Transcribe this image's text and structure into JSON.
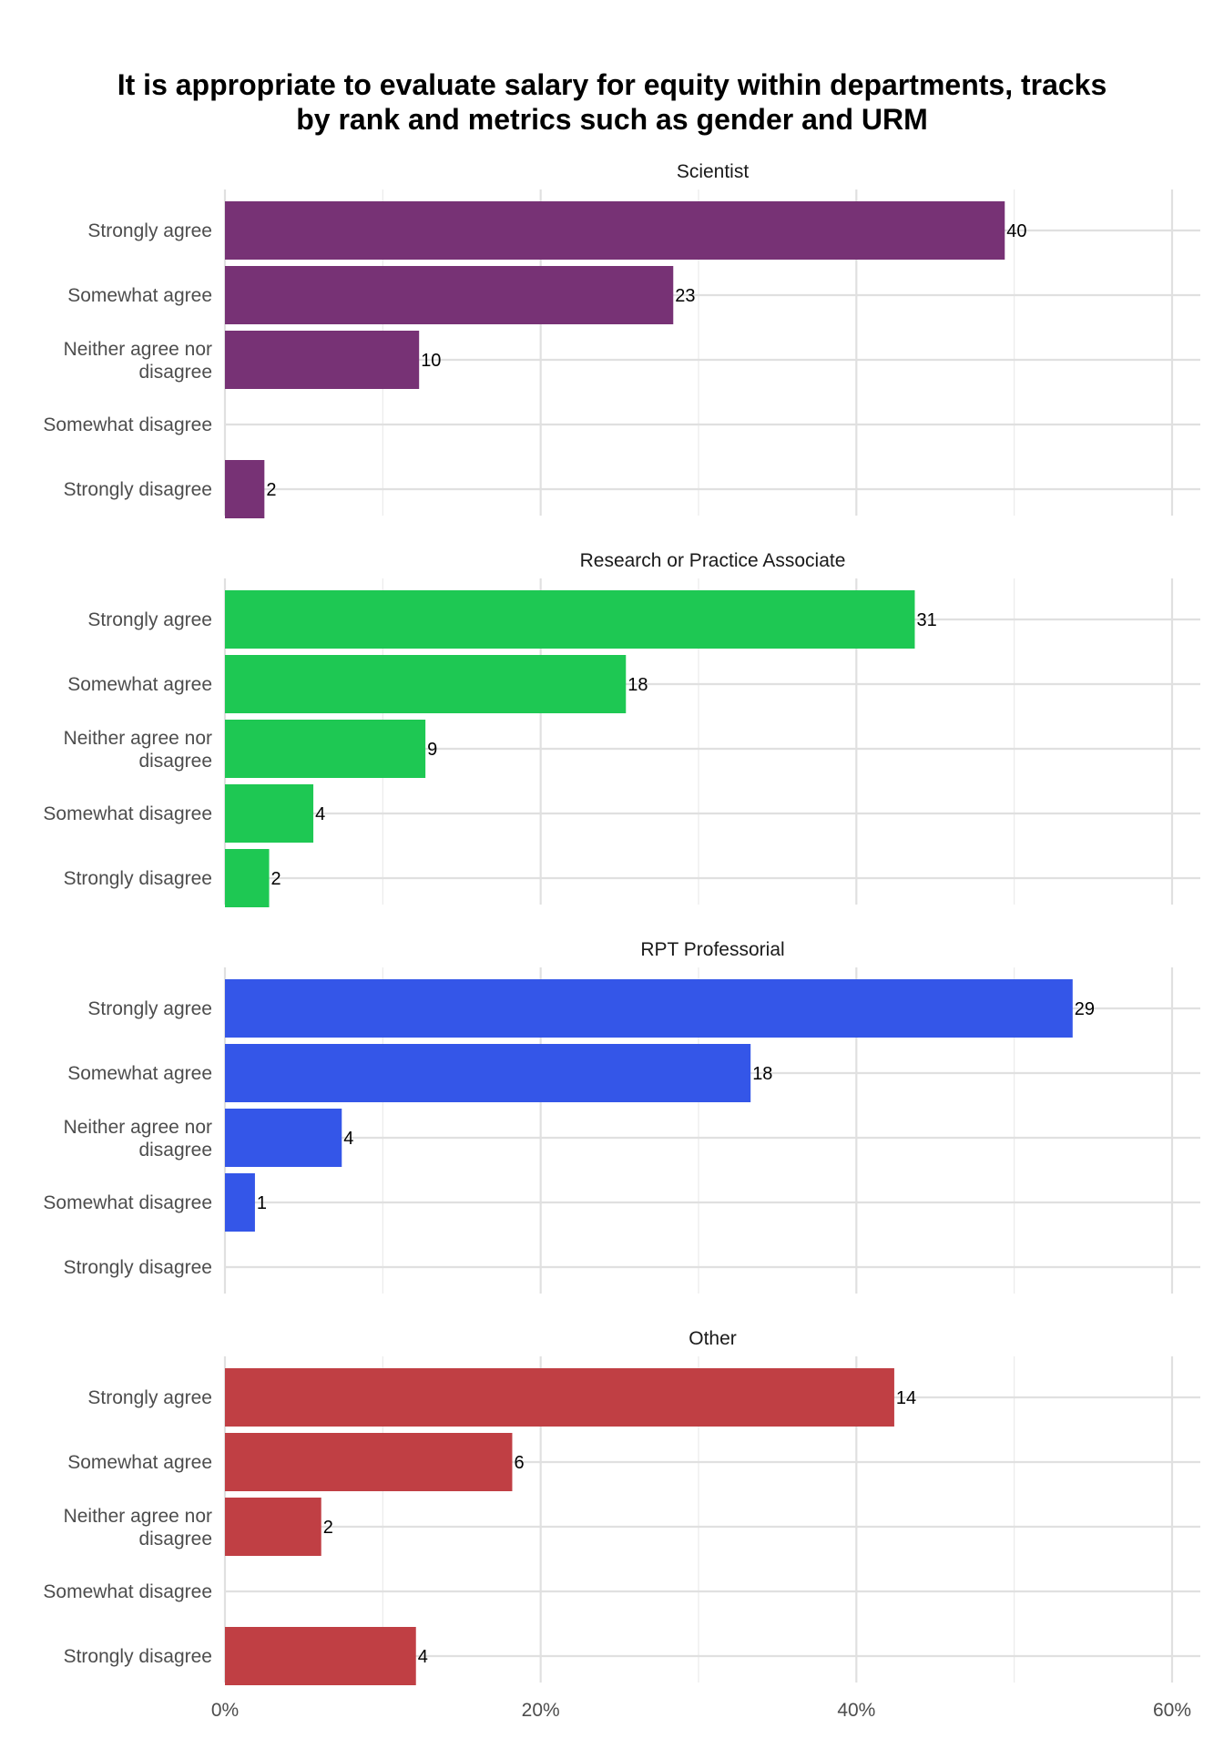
{
  "chart_data": {
    "type": "bar",
    "orientation": "horizontal",
    "title_lines": [
      "It is appropriate to evaluate salary for equity within departments, tracks",
      "by rank and metrics such as gender and URM"
    ],
    "categories": [
      "Strongly agree",
      "Somewhat agree",
      "Neither agree nor disagree",
      "Somewhat disagree",
      "Strongly disagree"
    ],
    "x_axis": {
      "ticks": [
        0,
        20,
        40,
        60
      ],
      "tick_labels": [
        "0%",
        "20%",
        "40%",
        "60%"
      ],
      "minor_ticks": [
        10,
        30,
        50
      ],
      "xlim": [
        0,
        62
      ]
    },
    "grid": true,
    "legend": "none",
    "facets": [
      {
        "name": "Scientist",
        "color": "#773275",
        "percent": [
          49.4,
          28.4,
          12.3,
          null,
          2.5
        ],
        "counts": [
          "40",
          "23",
          "10",
          null,
          "2"
        ]
      },
      {
        "name": "Research or Practice Associate",
        "color": "#1ec853",
        "percent": [
          43.7,
          25.4,
          12.7,
          5.6,
          2.8
        ],
        "counts": [
          "31",
          "18",
          "9",
          "4",
          "2"
        ]
      },
      {
        "name": "RPT Professorial",
        "color": "#3456e8",
        "percent": [
          53.7,
          33.3,
          7.4,
          1.9,
          null
        ],
        "counts": [
          "29",
          "18",
          "4",
          "1",
          null
        ]
      },
      {
        "name": "Other",
        "color": "#c03f44",
        "percent": [
          42.4,
          18.2,
          6.1,
          null,
          12.1
        ],
        "counts": [
          "14",
          "6",
          "2",
          null,
          "4"
        ]
      }
    ]
  }
}
